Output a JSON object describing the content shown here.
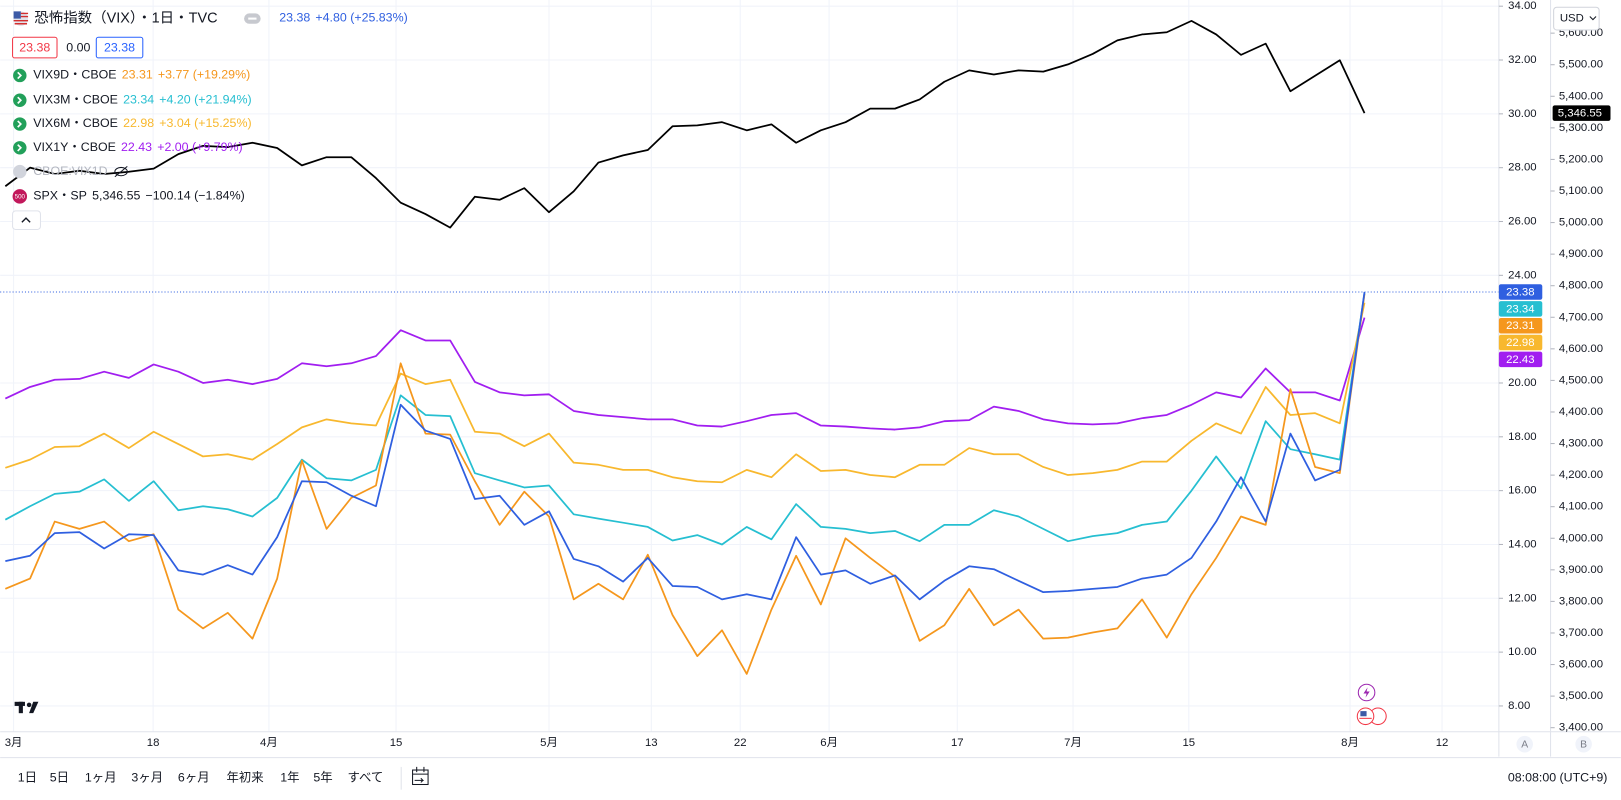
{
  "header": {
    "ohlc": [
      "23.38",
      "0.00",
      "23.38"
    ],
    "currency": "USD",
    "hidden_series": "CBOE:VIX1D",
    "badge": "500"
  },
  "chart_data": {
    "type": "line",
    "series": [
      {
        "name": "恐怖指数（VIX）・1日・TVC",
        "color": "#2f5fe0",
        "change": "+4.80 (+25.83%)",
        "values": [
          13.38,
          13.58,
          14.42,
          14.46,
          13.85,
          14.38,
          14.35,
          13.04,
          12.88,
          13.23,
          12.88,
          14.27,
          16.35,
          16.31,
          15.81,
          15.42,
          19.19,
          18.23,
          17.92,
          15.69,
          15.81,
          14.73,
          15.23,
          13.46,
          13.19,
          12.62,
          13.5,
          12.46,
          12.42,
          11.96,
          12.15,
          11.96,
          14.27,
          12.88,
          13.04,
          12.54,
          12.85,
          11.96,
          12.65,
          13.19,
          13.08,
          12.65,
          12.23,
          12.27,
          12.35,
          12.42,
          12.73,
          12.88,
          13.5,
          14.85,
          16.5,
          14.85,
          18.12,
          16.38,
          16.77,
          23.38
        ]
      },
      {
        "name": "VIX9D・CBOE",
        "color": "#f5971d",
        "change": "+3.77 (+19.29%)",
        "values": [
          12.35,
          12.73,
          14.85,
          14.58,
          14.85,
          14.12,
          14.38,
          11.58,
          10.88,
          11.46,
          10.5,
          12.73,
          17.12,
          14.58,
          15.73,
          16.19,
          20.73,
          18.12,
          18.08,
          16.35,
          14.73,
          15.96,
          15.04,
          11.96,
          12.54,
          11.96,
          13.62,
          11.38,
          9.85,
          10.81,
          9.19,
          11.58,
          13.58,
          11.77,
          14.23,
          13.5,
          12.81,
          10.42,
          11.0,
          12.35,
          11.0,
          11.58,
          10.5,
          10.54,
          10.73,
          10.88,
          11.96,
          10.54,
          12.15,
          13.5,
          15.04,
          14.73,
          19.77,
          16.88,
          16.65,
          23.31
        ]
      },
      {
        "name": "VIX3M・CBOE",
        "color": "#26bfd1",
        "change": "+4.20 (+21.94%)",
        "values": [
          14.92,
          15.42,
          15.88,
          15.96,
          16.42,
          15.62,
          16.35,
          15.27,
          15.42,
          15.31,
          15.04,
          15.73,
          17.15,
          16.46,
          16.38,
          16.77,
          19.54,
          18.81,
          18.77,
          16.65,
          16.38,
          16.12,
          16.19,
          15.12,
          14.96,
          14.81,
          14.65,
          14.15,
          14.35,
          14.0,
          14.65,
          14.19,
          15.5,
          14.65,
          14.58,
          14.42,
          14.5,
          14.12,
          14.73,
          14.73,
          15.27,
          15.04,
          14.58,
          14.12,
          14.31,
          14.42,
          14.73,
          14.85,
          16.0,
          17.27,
          16.08,
          18.58,
          17.54,
          17.35,
          17.15,
          23.34
        ]
      },
      {
        "name": "VIX6M・CBOE",
        "color": "#f8b82e",
        "change": "+3.04 (+15.25%)",
        "values": [
          16.85,
          17.15,
          17.62,
          17.65,
          18.12,
          17.58,
          18.19,
          17.73,
          17.27,
          17.35,
          17.15,
          17.73,
          18.35,
          18.65,
          18.5,
          18.42,
          20.35,
          19.96,
          20.12,
          18.19,
          18.12,
          17.65,
          18.12,
          17.04,
          16.96,
          16.77,
          16.77,
          16.5,
          16.35,
          16.31,
          16.77,
          16.5,
          17.35,
          16.73,
          16.77,
          16.58,
          16.5,
          16.96,
          16.96,
          17.58,
          17.35,
          17.35,
          16.88,
          16.58,
          16.65,
          16.77,
          17.08,
          17.08,
          17.85,
          18.5,
          18.12,
          19.85,
          18.81,
          18.88,
          18.5,
          22.98
        ]
      },
      {
        "name": "VIX1Y・CBOE",
        "color": "#a11ef0",
        "change": "+2.00 (+9.79%)",
        "values": [
          19.42,
          19.85,
          20.12,
          20.15,
          20.42,
          20.19,
          20.69,
          20.42,
          20.0,
          20.12,
          19.96,
          20.15,
          20.73,
          20.62,
          20.73,
          21.0,
          21.96,
          21.58,
          21.58,
          20.04,
          19.65,
          19.54,
          19.58,
          18.96,
          18.81,
          18.73,
          18.65,
          18.65,
          18.42,
          18.38,
          18.58,
          18.81,
          18.88,
          18.42,
          18.38,
          18.31,
          18.27,
          18.35,
          18.58,
          18.62,
          19.12,
          18.96,
          18.65,
          18.5,
          18.46,
          18.5,
          18.69,
          18.81,
          19.19,
          19.65,
          19.46,
          20.54,
          19.65,
          19.65,
          19.35,
          22.43
        ]
      },
      {
        "name": "SPX・SP",
        "color": "#000000",
        "axis": "y2",
        "change": "−100.14 (−1.84%)",
        "last_label": "5,346.55",
        "values": [
          5115,
          5174,
          5154,
          5164,
          5154,
          5161,
          5171,
          5217,
          5243,
          5239,
          5253,
          5236,
          5181,
          5207,
          5207,
          5141,
          5063,
          5027,
          4984,
          5082,
          5072,
          5109,
          5033,
          5099,
          5190,
          5213,
          5230,
          5305,
          5308,
          5318,
          5292,
          5311,
          5253,
          5292,
          5318,
          5361,
          5361,
          5390,
          5446,
          5482,
          5469,
          5482,
          5478,
          5501,
          5534,
          5577,
          5596,
          5603,
          5639,
          5596,
          5531,
          5567,
          5416,
          5465,
          5514,
          5346.55
        ]
      }
    ],
    "x_labels": [
      "3月",
      "18",
      "4月",
      "15",
      "5月",
      "13",
      "22",
      "6月",
      "17",
      "7月",
      "15",
      "8月",
      "12"
    ],
    "ylim": [
      7.04,
      34.23
    ],
    "yticks": [
      {
        "value": 8,
        "label": "8.00"
      },
      {
        "value": 10,
        "label": "10.00"
      },
      {
        "value": 12,
        "label": "12.00"
      },
      {
        "value": 14,
        "label": "14.00"
      },
      {
        "value": 16,
        "label": "16.00"
      },
      {
        "value": 18,
        "label": "18.00"
      },
      {
        "value": 20,
        "label": "20.00"
      },
      {
        "value": 24,
        "label": "24.00"
      },
      {
        "value": 26,
        "label": "26.00"
      },
      {
        "value": 28,
        "label": "28.00"
      },
      {
        "value": 30,
        "label": "30.00"
      },
      {
        "value": 32,
        "label": "32.00"
      },
      {
        "value": 34,
        "label": "34.00"
      }
    ],
    "y2lim": [
      3387,
      5705
    ],
    "y2ticks": [
      {
        "value": 3400,
        "label": "3,400.00"
      },
      {
        "value": 3500,
        "label": "3,500.00"
      },
      {
        "value": 3600,
        "label": "3,600.00"
      },
      {
        "value": 3700,
        "label": "3,700.00"
      },
      {
        "value": 3800,
        "label": "3,800.00"
      },
      {
        "value": 3900,
        "label": "3,900.00"
      },
      {
        "value": 4000,
        "label": "4,000.00"
      },
      {
        "value": 4100,
        "label": "4,100.00"
      },
      {
        "value": 4200,
        "label": "4,200.00"
      },
      {
        "value": 4300,
        "label": "4,300.00"
      },
      {
        "value": 4400,
        "label": "4,400.00"
      },
      {
        "value": 4500,
        "label": "4,500.00"
      },
      {
        "value": 4600,
        "label": "4,600.00"
      },
      {
        "value": 4700,
        "label": "4,700.00"
      },
      {
        "value": 4800,
        "label": "4,800.00"
      },
      {
        "value": 4900,
        "label": "4,900.00"
      },
      {
        "value": 5000,
        "label": "5,000.00"
      },
      {
        "value": 5100,
        "label": "5,100.00"
      },
      {
        "value": 5200,
        "label": "5,200.00"
      },
      {
        "value": 5300,
        "label": "5,300.00"
      },
      {
        "value": 5400,
        "label": "5,400.00"
      },
      {
        "value": 5500,
        "label": "5,500.00"
      },
      {
        "value": 5600,
        "label": "5,600.00"
      }
    ],
    "grid": true
  },
  "scale_buttons": [
    "A",
    "B"
  ],
  "toolbar": {
    "ranges": [
      "1日",
      "5日",
      "1ヶ月",
      "3ヶ月",
      "6ヶ月",
      "年初来",
      "1年",
      "5年",
      "すべて"
    ],
    "time": "08:08:00 (UTC+9)"
  }
}
